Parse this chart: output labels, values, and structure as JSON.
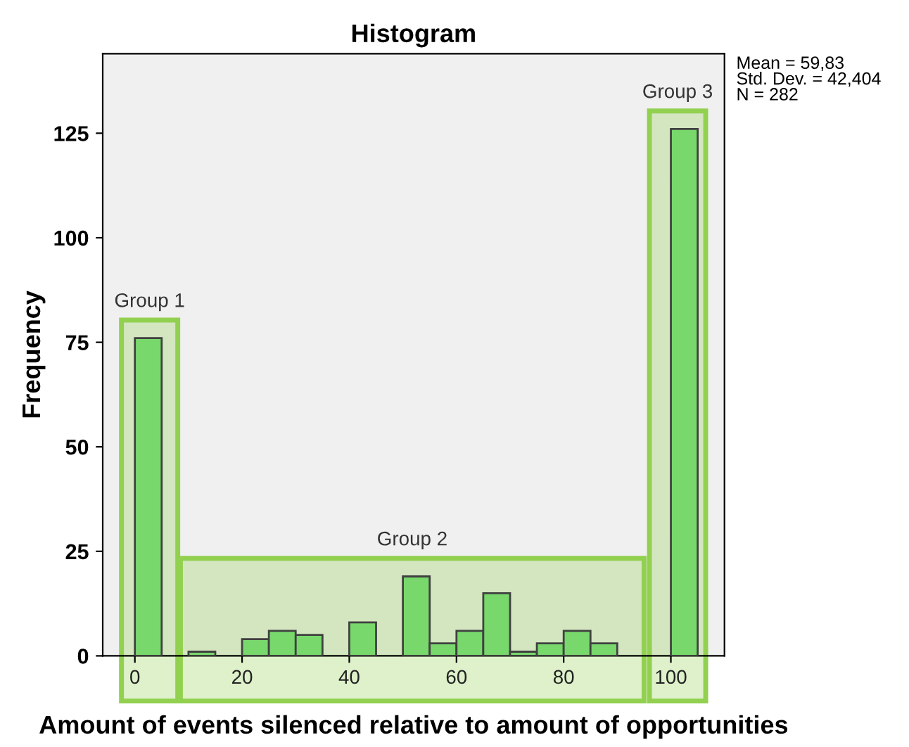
{
  "chart_data": {
    "type": "histogram",
    "title": "Histogram",
    "xlabel": "Amount of events silenced relative to amount of opportunities",
    "ylabel": "Frequency",
    "bins": [
      0,
      5,
      10,
      15,
      20,
      25,
      30,
      35,
      40,
      45,
      50,
      55,
      60,
      65,
      70,
      75,
      80,
      85,
      90,
      95,
      100,
      105
    ],
    "values": [
      76,
      0,
      1,
      0,
      4,
      6,
      5,
      0,
      8,
      0,
      19,
      3,
      6,
      15,
      1,
      3,
      6,
      3,
      0,
      0,
      126
    ],
    "color": "#78d86c",
    "xlim": [
      -6,
      110
    ],
    "ylim": [
      0,
      144
    ],
    "xticks": [
      0,
      20,
      40,
      60,
      80,
      100
    ],
    "yticks": [
      0,
      25,
      50,
      75,
      100,
      125
    ],
    "bands": [
      {
        "axis": "x",
        "from": -2.5,
        "to": 8,
        "label": "Group 1",
        "color": "#92d050"
      },
      {
        "axis": "x",
        "from": 8.5,
        "to": 95,
        "label": "Group 2",
        "color": "#92d050"
      },
      {
        "axis": "x",
        "from": 96,
        "to": 106.5,
        "label": "Group 3",
        "color": "#92d050"
      }
    ],
    "annotations": [
      "Mean = 59,83\nStd. Dev. = 42,404\nN = 282"
    ],
    "grid": false
  }
}
